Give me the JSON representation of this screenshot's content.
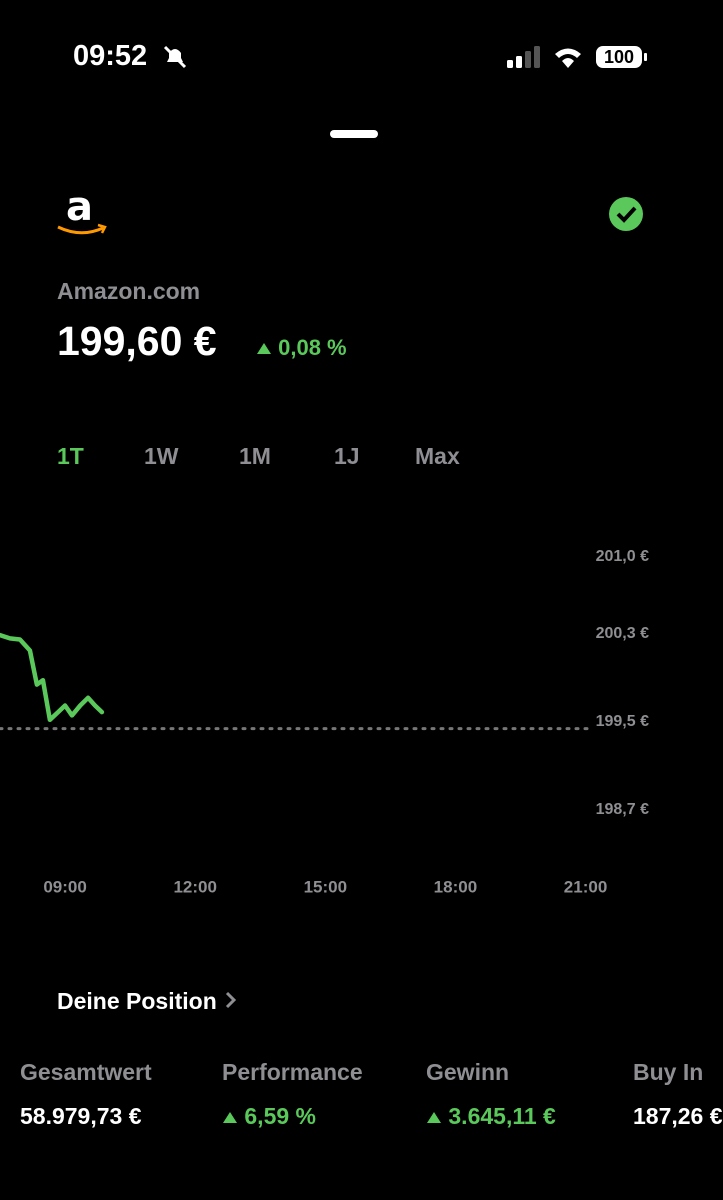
{
  "status_bar": {
    "time": "09:52",
    "battery": "100"
  },
  "header": {
    "logo": "a",
    "name": "Amazon.com",
    "price": "199,60 €",
    "change": "0,08 %"
  },
  "tabs": [
    "1T",
    "1W",
    "1M",
    "1J",
    "Max"
  ],
  "active_tab": 0,
  "chart_data": {
    "type": "line",
    "x": [
      7.5,
      7.73,
      7.96,
      8.19,
      8.35,
      8.49,
      8.65,
      8.84,
      9.0,
      9.16,
      9.35,
      9.53,
      9.69,
      9.85
    ],
    "series": [
      {
        "color": "#5ac85a",
        "values": [
          200.29,
          200.26,
          200.25,
          200.15,
          199.84,
          199.88,
          199.52,
          199.59,
          199.65,
          199.56,
          199.65,
          199.72,
          199.65,
          199.59
        ]
      }
    ],
    "baseline": 199.44,
    "xlim": [
      7.5,
      23.8
    ],
    "xticks": [
      {
        "value": 9,
        "label": "09:00"
      },
      {
        "value": 12,
        "label": "12:00"
      },
      {
        "value": 15,
        "label": "15:00"
      },
      {
        "value": 18,
        "label": "18:00"
      },
      {
        "value": 21,
        "label": "21:00"
      }
    ],
    "ylim": [
      198.7,
      201.0
    ],
    "yticks": [
      {
        "value": 201.0,
        "label": "201,0 €"
      },
      {
        "value": 200.3,
        "label": "200,3 €"
      },
      {
        "value": 199.5,
        "label": "199,5 €"
      },
      {
        "value": 198.7,
        "label": "198,7 €"
      }
    ],
    "grid": false
  },
  "position": {
    "title": "Deine Position",
    "stats": [
      {
        "label": "Gesamtwert",
        "value": "58.979,73 €",
        "up": false
      },
      {
        "label": "Performance",
        "value": "6,59 %",
        "up": true
      },
      {
        "label": "Gewinn",
        "value": "3.645,11 €",
        "up": true
      },
      {
        "label": "Buy In",
        "value": "187,26 €",
        "up": false
      }
    ]
  }
}
